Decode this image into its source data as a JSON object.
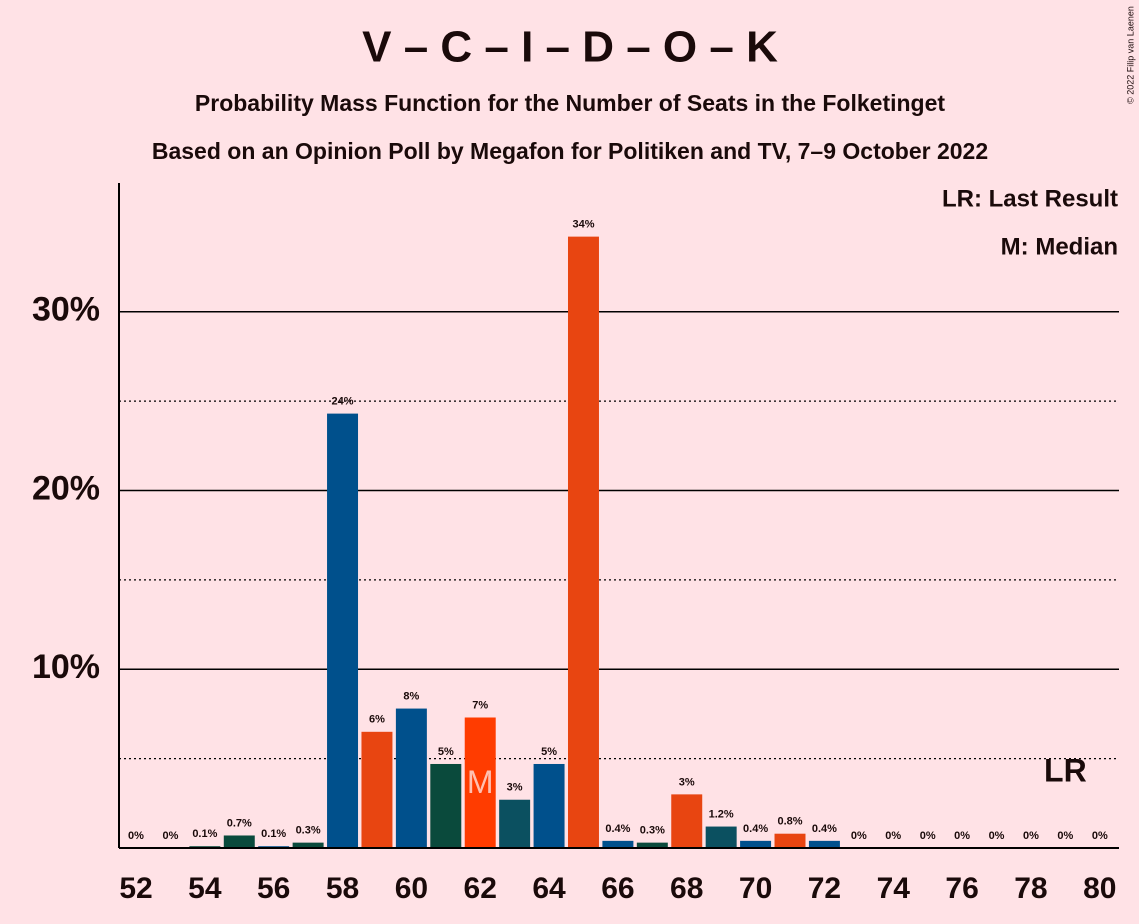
{
  "chart_data": {
    "type": "bar",
    "title": "V – C – I – D – O – K",
    "subtitle": "Probability Mass Function for the Number of Seats in the Folketinget",
    "subtitle2": "Based on an Opinion Poll by Megafon for Politiken and TV, 7–9 October 2022",
    "copyright": "© 2022 Filip van Laenen",
    "x": [
      52,
      53,
      54,
      55,
      56,
      57,
      58,
      59,
      60,
      61,
      62,
      63,
      64,
      65,
      66,
      67,
      68,
      69,
      70,
      71,
      72,
      73,
      74,
      75,
      76,
      77,
      78,
      79,
      80
    ],
    "values": [
      0,
      0,
      0.1,
      0.7,
      0.1,
      0.3,
      24.3,
      6.5,
      7.8,
      4.7,
      7.3,
      2.7,
      4.7,
      34.2,
      0.4,
      0.3,
      3.0,
      1.2,
      0.4,
      0.8,
      0.4,
      0,
      0,
      0,
      0,
      0,
      0,
      0,
      0
    ],
    "value_labels": [
      "0%",
      "0%",
      "0.1%",
      "0.7%",
      "0.1%",
      "0.3%",
      "24%",
      "6%",
      "8%",
      "5%",
      "7%",
      "3%",
      "5%",
      "34%",
      "0.4%",
      "0.3%",
      "3%",
      "1.2%",
      "0.4%",
      "0.8%",
      "0.4%",
      "0%",
      "0%",
      "0%",
      "0%",
      "0%",
      "0%",
      "0%",
      "0%"
    ],
    "colors": [
      "#00508c",
      "#e84511",
      "#0a4a3c",
      "#0a4a3c",
      "#00508c",
      "#0a4a3c",
      "#00508c",
      "#e84511",
      "#00508c",
      "#0a4a3c",
      "#ff3c00",
      "#0b5060",
      "#00508c",
      "#e84511",
      "#00508c",
      "#0a4a3c",
      "#e84511",
      "#0b5060",
      "#00508c",
      "#e84511",
      "#00508c",
      "#00508c",
      "#00508c",
      "#00508c",
      "#00508c",
      "#00508c",
      "#00508c",
      "#00508c",
      "#00508c"
    ],
    "xlim": [
      51.5,
      80.5
    ],
    "xticks": [
      52,
      54,
      56,
      58,
      60,
      62,
      64,
      66,
      68,
      70,
      72,
      74,
      76,
      78,
      80
    ],
    "ylim": [
      0,
      37.2
    ],
    "yticks": [
      {
        "value": 10,
        "label": "10%"
      },
      {
        "value": 20,
        "label": "20%"
      },
      {
        "value": 30,
        "label": "30%"
      }
    ],
    "minor_yticks": [
      5,
      15,
      25
    ],
    "grid": true,
    "legend": [
      "LR: Last Result",
      "M: Median"
    ],
    "median": 62,
    "median_label": "M",
    "last_result": 79,
    "last_result_label": "LR"
  }
}
